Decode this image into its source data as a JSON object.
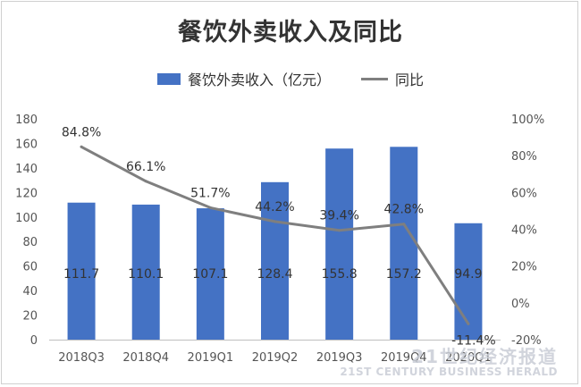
{
  "chart_data": {
    "type": "bar",
    "title": "餐饮外卖收入及同比",
    "categories": [
      "2018Q3",
      "2018Q4",
      "2019Q1",
      "2019Q2",
      "2019Q3",
      "2019Q4",
      "2020Q1"
    ],
    "series": [
      {
        "name": "餐饮外卖收入（亿元）",
        "type": "bar",
        "axis": "left",
        "values": [
          111.7,
          110.1,
          107.1,
          128.4,
          155.8,
          157.2,
          94.9
        ],
        "labels": [
          "111.7",
          "110.1",
          "107.1",
          "128.4",
          "155.8",
          "157.2",
          "94.9"
        ],
        "color": "#4472C4"
      },
      {
        "name": "同比",
        "type": "line",
        "axis": "right",
        "values": [
          84.8,
          66.1,
          51.7,
          44.2,
          39.4,
          42.8,
          -11.4
        ],
        "labels": [
          "84.8%",
          "66.1%",
          "51.7%",
          "44.2%",
          "39.4%",
          "42.8%",
          "-11.4%"
        ],
        "color": "#7f7f7f"
      }
    ],
    "y_left": {
      "lim": [
        0,
        180
      ],
      "ticks": [
        "0",
        "20",
        "40",
        "60",
        "80",
        "100",
        "120",
        "140",
        "160",
        "180"
      ]
    },
    "y_right": {
      "lim": [
        -20,
        100
      ],
      "ticks": [
        "-20%",
        "0%",
        "20%",
        "40%",
        "60%",
        "80%",
        "100%"
      ]
    },
    "grid": false,
    "legend_position": "top-center"
  },
  "legend": {
    "bar_label": "餐饮外卖收入（亿元）",
    "line_label": "同比"
  },
  "watermark": {
    "main": "21世纪经济报道",
    "sub": "21ST CENTURY BUSINESS HERALD"
  }
}
